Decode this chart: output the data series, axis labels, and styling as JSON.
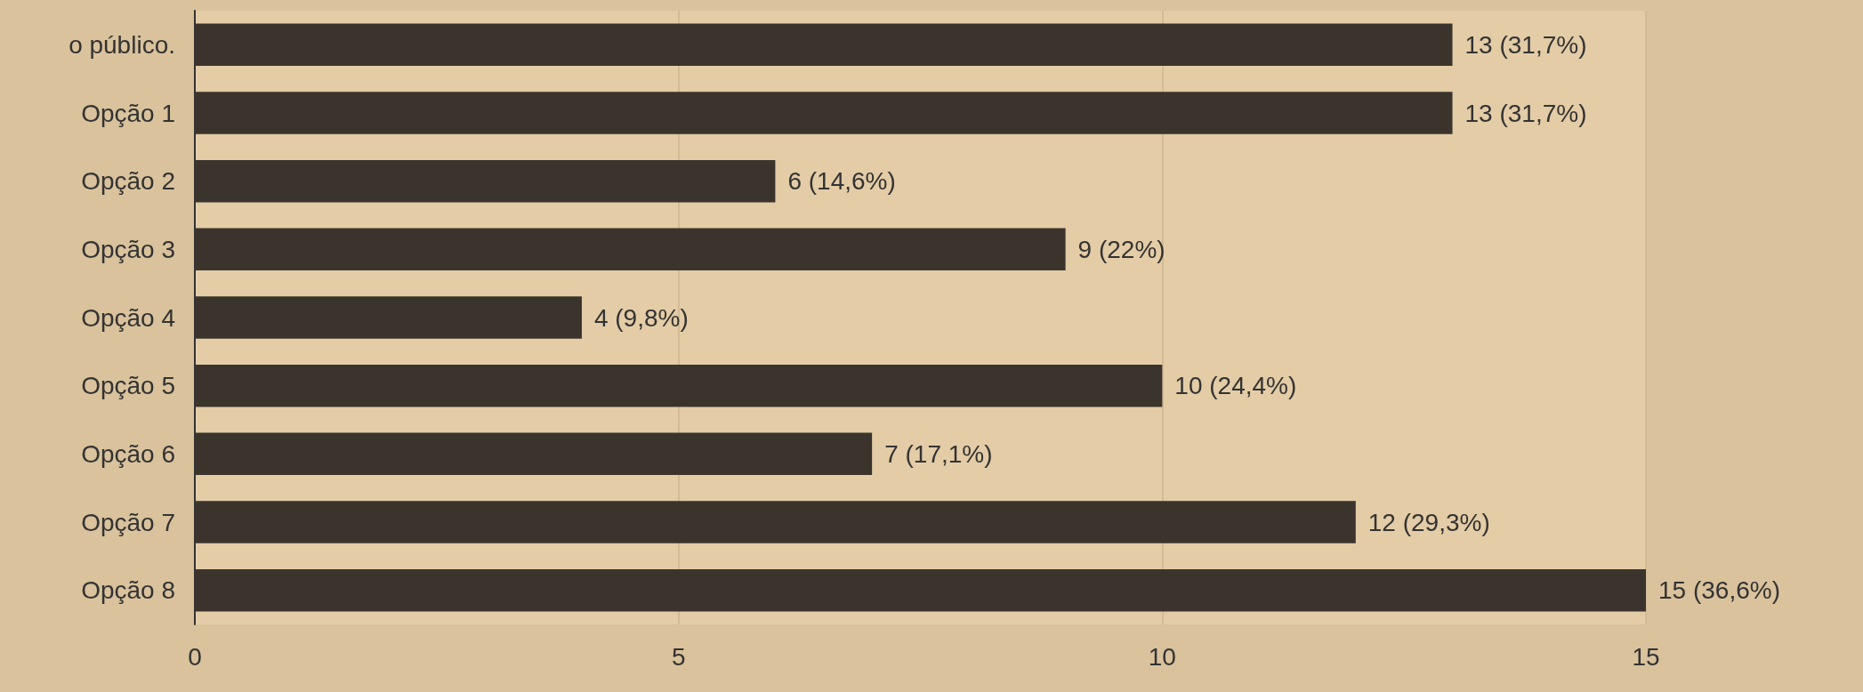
{
  "chart_data": {
    "type": "bar",
    "orientation": "horizontal",
    "categories": [
      "o público.",
      "Opção 1",
      "Opção 2",
      "Opção 3",
      "Opção 4",
      "Opção 5",
      "Opção 6",
      "Opção 7",
      "Opção 8"
    ],
    "values": [
      13,
      13,
      6,
      9,
      4,
      10,
      7,
      12,
      15
    ],
    "value_labels": [
      "13 (31,7%)",
      "13 (31,7%)",
      "6 (14,6%)",
      "9 (22%)",
      "4 (9,8%)",
      "10 (24,4%)",
      "7 (17,1%)",
      "12 (29,3%)",
      "15 (36,6%)"
    ],
    "color": "#3a342c",
    "xlim": [
      0,
      15
    ],
    "xticks": [
      0,
      5,
      10,
      15
    ],
    "grid": "x"
  }
}
